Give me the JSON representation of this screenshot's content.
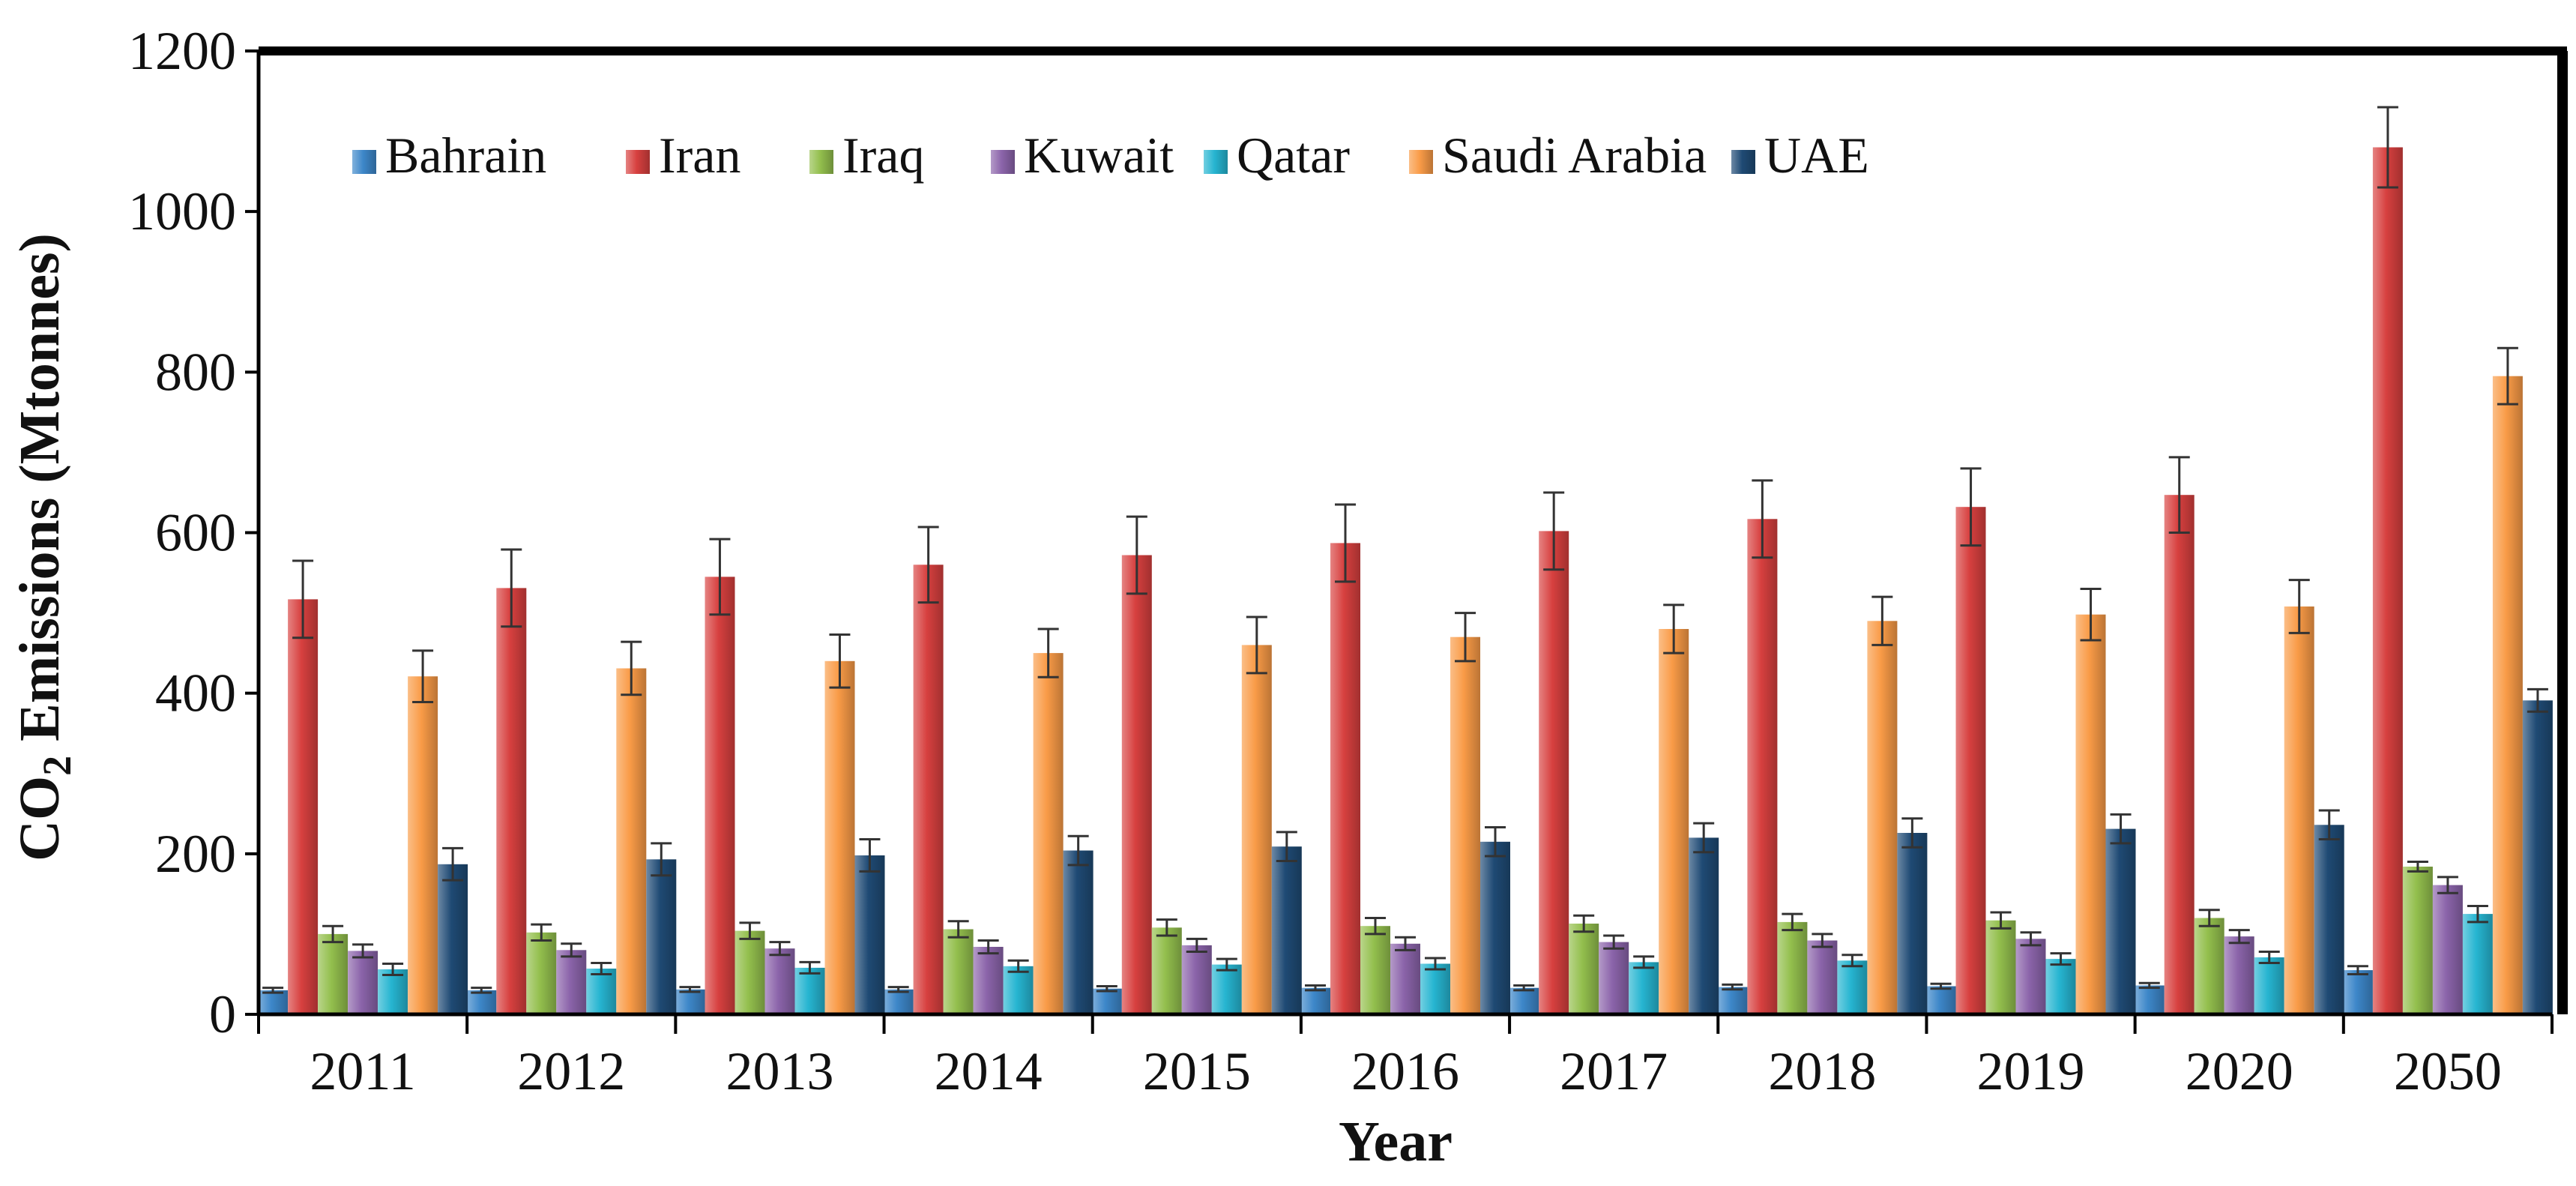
{
  "chart_data": {
    "type": "bar",
    "title": "",
    "xlabel": "Year",
    "ylabel": "CO2 Emissions (Mtonnes)",
    "ylabel_main": "CO",
    "ylabel_sub": "2",
    "ylabel_rest": " Emissions (Mtonnes)",
    "ylim": [
      0,
      1200
    ],
    "yticks": [
      "0",
      "200",
      "400",
      "600",
      "800",
      "1000",
      "1200"
    ],
    "categories": [
      "2011",
      "2012",
      "2013",
      "2014",
      "2015",
      "2016",
      "2017",
      "2018",
      "2019",
      "2020",
      "2050"
    ],
    "legend_position": "top-left",
    "series": [
      {
        "name": "Bahrain",
        "color": "#3d87c9",
        "values": [
          30,
          30,
          31,
          31,
          32,
          33,
          33,
          34,
          35,
          36,
          55
        ],
        "errors": [
          3,
          3,
          3,
          3,
          3,
          3,
          3,
          3,
          3,
          3,
          5
        ]
      },
      {
        "name": "Iran",
        "color": "#d7403f",
        "values": [
          517,
          531,
          545,
          560,
          572,
          587,
          602,
          617,
          632,
          647,
          1080
        ],
        "errors": [
          48,
          48,
          47,
          47,
          48,
          48,
          48,
          48,
          48,
          47,
          50
        ]
      },
      {
        "name": "Iraq",
        "color": "#93bf4d",
        "values": [
          100,
          102,
          104,
          106,
          108,
          110,
          113,
          115,
          117,
          120,
          184
        ],
        "errors": [
          10,
          10,
          10,
          10,
          10,
          10,
          10,
          10,
          10,
          10,
          6
        ]
      },
      {
        "name": "Kuwait",
        "color": "#8b64aa",
        "values": [
          79,
          80,
          82,
          84,
          86,
          88,
          90,
          92,
          94,
          97,
          161
        ],
        "errors": [
          8,
          8,
          8,
          8,
          8,
          8,
          8,
          8,
          8,
          8,
          10
        ]
      },
      {
        "name": "Qatar",
        "color": "#26b5d1",
        "values": [
          56,
          57,
          58,
          60,
          62,
          63,
          65,
          67,
          69,
          71,
          125
        ],
        "errors": [
          7,
          7,
          7,
          7,
          7,
          7,
          7,
          7,
          7,
          7,
          10
        ]
      },
      {
        "name": "Saudi Arabia",
        "color": "#f99b47",
        "values": [
          421,
          431,
          440,
          450,
          460,
          470,
          480,
          490,
          498,
          508,
          795
        ],
        "errors": [
          32,
          33,
          33,
          30,
          35,
          30,
          30,
          30,
          32,
          33,
          35
        ]
      },
      {
        "name": "UAE",
        "color": "#1f4a74",
        "values": [
          187,
          193,
          198,
          204,
          209,
          215,
          220,
          226,
          231,
          236,
          391
        ],
        "errors": [
          20,
          20,
          20,
          18,
          18,
          18,
          18,
          18,
          18,
          18,
          14
        ]
      }
    ]
  }
}
